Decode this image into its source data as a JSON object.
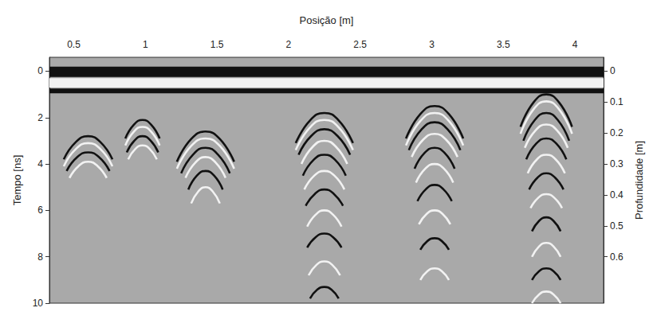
{
  "chart_data": {
    "type": "line",
    "title": "Posição [m]",
    "y_label": "Tempo [ns]",
    "y2_label": "Profundidade [m]",
    "xlim": [
      0.33,
      4.2
    ],
    "xticks": [
      0.5,
      1,
      1.5,
      2,
      2.5,
      3,
      3.5,
      4
    ],
    "ylim": [
      -0.6,
      10
    ],
    "yticks": [
      0,
      2,
      4,
      6,
      8,
      10
    ],
    "y2lim": [
      -0.045,
      0.75
    ],
    "y2ticks": [
      0,
      0.1,
      0.2,
      0.3,
      0.4,
      0.5,
      0.6
    ],
    "grid": false,
    "bands": [
      {
        "from": -0.2,
        "to": 0.25
      },
      {
        "from": 0.3,
        "to": 0.7
      },
      {
        "from": 0.75,
        "to": 0.95
      }
    ],
    "reflectors": [
      {
        "curves": [
          [
            [
              0.43,
              3.8
            ],
            [
              0.515,
              3.05
            ],
            [
              0.6,
              2.8
            ],
            [
              0.685,
              3.05
            ],
            [
              0.77,
              3.8
            ]
          ],
          [
            [
              0.43,
              4.1
            ],
            [
              0.515,
              3.35
            ],
            [
              0.6,
              3.1
            ],
            [
              0.685,
              3.35
            ],
            [
              0.77,
              4.1
            ]
          ],
          [
            [
              0.45,
              4.3
            ],
            [
              0.525,
              3.7
            ],
            [
              0.6,
              3.5
            ],
            [
              0.675,
              3.7
            ],
            [
              0.75,
              4.3
            ]
          ],
          [
            [
              0.47,
              4.6
            ],
            [
              0.535,
              4.08
            ],
            [
              0.6,
              3.9
            ],
            [
              0.665,
              4.08
            ],
            [
              0.73,
              4.6
            ]
          ]
        ]
      },
      {
        "curves": [
          [
            [
              0.86,
              2.9
            ],
            [
              0.92,
              2.3
            ],
            [
              0.98,
              2.1
            ],
            [
              1.04,
              2.3
            ],
            [
              1.1,
              2.9
            ]
          ],
          [
            [
              0.86,
              3.2
            ],
            [
              0.92,
              2.6
            ],
            [
              0.98,
              2.4
            ],
            [
              1.04,
              2.6
            ],
            [
              1.1,
              3.2
            ]
          ],
          [
            [
              0.87,
              3.5
            ],
            [
              0.925,
              2.98
            ],
            [
              0.98,
              2.8
            ],
            [
              1.035,
              2.98
            ],
            [
              1.09,
              3.5
            ]
          ],
          [
            [
              0.88,
              3.8
            ],
            [
              0.93,
              3.35
            ],
            [
              0.98,
              3.2
            ],
            [
              1.03,
              3.35
            ],
            [
              1.08,
              3.8
            ]
          ]
        ]
      },
      {
        "curves": [
          [
            [
              1.22,
              3.9
            ],
            [
              1.32,
              2.92
            ],
            [
              1.42,
              2.6
            ],
            [
              1.52,
              2.92
            ],
            [
              1.62,
              3.9
            ]
          ],
          [
            [
              1.22,
              4.2
            ],
            [
              1.32,
              3.22
            ],
            [
              1.42,
              2.9
            ],
            [
              1.52,
              3.22
            ],
            [
              1.62,
              4.2
            ]
          ],
          [
            [
              1.25,
              4.4
            ],
            [
              1.335,
              3.58
            ],
            [
              1.42,
              3.3
            ],
            [
              1.505,
              3.58
            ],
            [
              1.59,
              4.4
            ]
          ],
          [
            [
              1.28,
              4.6
            ],
            [
              1.35,
              3.93
            ],
            [
              1.42,
              3.7
            ],
            [
              1.49,
              3.93
            ],
            [
              1.56,
              4.6
            ]
          ],
          [
            [
              1.3,
              5.1
            ],
            [
              1.36,
              4.5
            ],
            [
              1.42,
              4.3
            ],
            [
              1.48,
              4.5
            ],
            [
              1.54,
              5.1
            ]
          ],
          [
            [
              1.32,
              5.7
            ],
            [
              1.37,
              5.18
            ],
            [
              1.42,
              5.0
            ],
            [
              1.47,
              5.18
            ],
            [
              1.52,
              5.7
            ]
          ]
        ]
      },
      {
        "curves": [
          [
            [
              2.05,
              3.1
            ],
            [
              2.15,
              2.12
            ],
            [
              2.25,
              1.8
            ],
            [
              2.35,
              2.12
            ],
            [
              2.45,
              3.1
            ]
          ],
          [
            [
              2.05,
              3.4
            ],
            [
              2.15,
              2.42
            ],
            [
              2.25,
              2.1
            ],
            [
              2.35,
              2.42
            ],
            [
              2.45,
              3.4
            ]
          ],
          [
            [
              2.07,
              3.6
            ],
            [
              2.16,
              2.78
            ],
            [
              2.25,
              2.5
            ],
            [
              2.34,
              2.78
            ],
            [
              2.43,
              3.6
            ]
          ],
          [
            [
              2.09,
              4.0
            ],
            [
              2.17,
              3.25
            ],
            [
              2.25,
              3.0
            ],
            [
              2.33,
              3.25
            ],
            [
              2.41,
              4.0
            ]
          ],
          [
            [
              2.1,
              4.5
            ],
            [
              2.175,
              3.82
            ],
            [
              2.25,
              3.6
            ],
            [
              2.325,
              3.82
            ],
            [
              2.4,
              4.5
            ]
          ],
          [
            [
              2.11,
              5.1
            ],
            [
              2.18,
              4.5
            ],
            [
              2.25,
              4.3
            ],
            [
              2.32,
              4.5
            ],
            [
              2.39,
              5.1
            ]
          ],
          [
            [
              2.12,
              5.8
            ],
            [
              2.185,
              5.28
            ],
            [
              2.25,
              5.1
            ],
            [
              2.315,
              5.28
            ],
            [
              2.38,
              5.8
            ]
          ],
          [
            [
              2.13,
              6.7
            ],
            [
              2.19,
              6.18
            ],
            [
              2.25,
              6.0
            ],
            [
              2.31,
              6.18
            ],
            [
              2.37,
              6.7
            ]
          ],
          [
            [
              2.13,
              7.6
            ],
            [
              2.19,
              7.15
            ],
            [
              2.25,
              7.0
            ],
            [
              2.31,
              7.15
            ],
            [
              2.37,
              7.6
            ]
          ],
          [
            [
              2.14,
              8.8
            ],
            [
              2.195,
              8.35
            ],
            [
              2.25,
              8.2
            ],
            [
              2.305,
              8.35
            ],
            [
              2.36,
              8.8
            ]
          ],
          [
            [
              2.15,
              9.8
            ],
            [
              2.2,
              9.42
            ],
            [
              2.25,
              9.3
            ],
            [
              2.3,
              9.42
            ],
            [
              2.35,
              9.8
            ]
          ]
        ]
      },
      {
        "curves": [
          [
            [
              2.82,
              2.9
            ],
            [
              2.92,
              1.85
            ],
            [
              3.02,
              1.5
            ],
            [
              3.12,
              1.85
            ],
            [
              3.22,
              2.9
            ]
          ],
          [
            [
              2.82,
              3.2
            ],
            [
              2.92,
              2.15
            ],
            [
              3.02,
              1.8
            ],
            [
              3.12,
              2.15
            ],
            [
              3.22,
              3.2
            ]
          ],
          [
            [
              2.84,
              3.4
            ],
            [
              2.93,
              2.5
            ],
            [
              3.02,
              2.2
            ],
            [
              3.11,
              2.5
            ],
            [
              3.2,
              3.4
            ]
          ],
          [
            [
              2.86,
              3.7
            ],
            [
              2.94,
              2.95
            ],
            [
              3.02,
              2.7
            ],
            [
              3.1,
              2.95
            ],
            [
              3.18,
              3.7
            ]
          ],
          [
            [
              2.88,
              4.2
            ],
            [
              2.95,
              3.52
            ],
            [
              3.02,
              3.3
            ],
            [
              3.09,
              3.52
            ],
            [
              3.16,
              4.2
            ]
          ],
          [
            [
              2.89,
              4.8
            ],
            [
              2.955,
              4.2
            ],
            [
              3.02,
              4.0
            ],
            [
              3.085,
              4.2
            ],
            [
              3.15,
              4.8
            ]
          ],
          [
            [
              2.9,
              5.6
            ],
            [
              2.96,
              5.08
            ],
            [
              3.02,
              4.9
            ],
            [
              3.08,
              5.08
            ],
            [
              3.14,
              5.6
            ]
          ],
          [
            [
              2.91,
              6.6
            ],
            [
              2.965,
              6.15
            ],
            [
              3.02,
              6.0
            ],
            [
              3.075,
              6.15
            ],
            [
              3.13,
              6.6
            ]
          ],
          [
            [
              2.92,
              7.7
            ],
            [
              2.97,
              7.32
            ],
            [
              3.02,
              7.2
            ],
            [
              3.07,
              7.32
            ],
            [
              3.12,
              7.7
            ]
          ],
          [
            [
              2.92,
              9.0
            ],
            [
              2.97,
              8.62
            ],
            [
              3.02,
              8.5
            ],
            [
              3.07,
              8.62
            ],
            [
              3.12,
              9.0
            ]
          ]
        ]
      },
      {
        "curves": [
          [
            [
              3.62,
              2.4
            ],
            [
              3.71,
              1.35
            ],
            [
              3.8,
              1.0
            ],
            [
              3.89,
              1.35
            ],
            [
              3.98,
              2.4
            ]
          ],
          [
            [
              3.62,
              2.7
            ],
            [
              3.71,
              1.65
            ],
            [
              3.8,
              1.3
            ],
            [
              3.89,
              1.65
            ],
            [
              3.98,
              2.7
            ]
          ],
          [
            [
              3.64,
              3.0
            ],
            [
              3.72,
              2.1
            ],
            [
              3.8,
              1.8
            ],
            [
              3.88,
              2.1
            ],
            [
              3.96,
              3.0
            ]
          ],
          [
            [
              3.65,
              3.3
            ],
            [
              3.725,
              2.55
            ],
            [
              3.8,
              2.3
            ],
            [
              3.875,
              2.55
            ],
            [
              3.95,
              3.3
            ]
          ],
          [
            [
              3.66,
              3.8
            ],
            [
              3.73,
              3.12
            ],
            [
              3.8,
              2.9
            ],
            [
              3.87,
              3.12
            ],
            [
              3.94,
              3.8
            ]
          ],
          [
            [
              3.67,
              4.4
            ],
            [
              3.735,
              3.8
            ],
            [
              3.8,
              3.6
            ],
            [
              3.865,
              3.8
            ],
            [
              3.93,
              4.4
            ]
          ],
          [
            [
              3.68,
              5.1
            ],
            [
              3.74,
              4.58
            ],
            [
              3.8,
              4.4
            ],
            [
              3.86,
              4.58
            ],
            [
              3.92,
              5.1
            ]
          ],
          [
            [
              3.69,
              5.9
            ],
            [
              3.745,
              5.45
            ],
            [
              3.8,
              5.3
            ],
            [
              3.855,
              5.45
            ],
            [
              3.91,
              5.9
            ]
          ],
          [
            [
              3.7,
              6.9
            ],
            [
              3.75,
              6.45
            ],
            [
              3.8,
              6.3
            ],
            [
              3.85,
              6.45
            ],
            [
              3.9,
              6.9
            ]
          ],
          [
            [
              3.7,
              8.0
            ],
            [
              3.75,
              7.55
            ],
            [
              3.8,
              7.4
            ],
            [
              3.85,
              7.55
            ],
            [
              3.9,
              8.0
            ]
          ],
          [
            [
              3.7,
              9.0
            ],
            [
              3.75,
              8.62
            ],
            [
              3.8,
              8.5
            ],
            [
              3.85,
              8.62
            ],
            [
              3.9,
              9.0
            ]
          ],
          [
            [
              3.7,
              10.0
            ],
            [
              3.75,
              9.62
            ],
            [
              3.8,
              9.5
            ],
            [
              3.85,
              9.62
            ],
            [
              3.9,
              10.0
            ]
          ]
        ]
      }
    ]
  }
}
